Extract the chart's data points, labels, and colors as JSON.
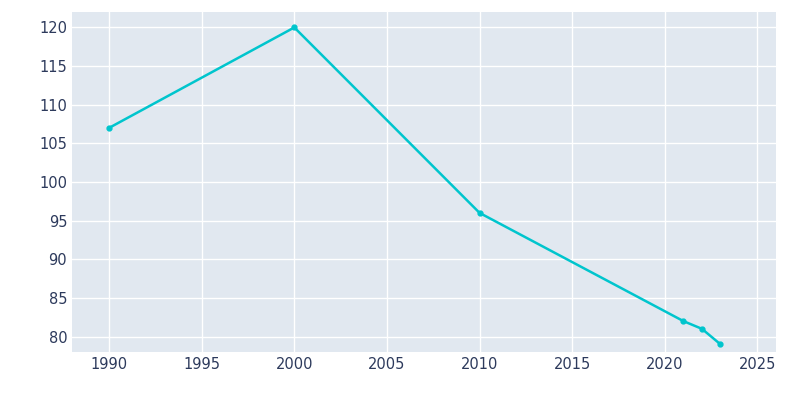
{
  "years": [
    1990,
    2000,
    2010,
    2021,
    2022,
    2023
  ],
  "population": [
    107,
    120,
    96,
    82,
    81,
    79
  ],
  "line_color": "#00C5CD",
  "bg_color": "#FFFFFF",
  "plot_bg_color": "#E1E8F0",
  "grid_color": "#FFFFFF",
  "tick_color": "#2D3A5C",
  "xlim": [
    1988,
    2026
  ],
  "ylim": [
    78,
    122
  ],
  "yticks": [
    80,
    85,
    90,
    95,
    100,
    105,
    110,
    115,
    120
  ],
  "xticks": [
    1990,
    1995,
    2000,
    2005,
    2010,
    2015,
    2020,
    2025
  ],
  "linewidth": 1.8,
  "markersize": 3.5
}
